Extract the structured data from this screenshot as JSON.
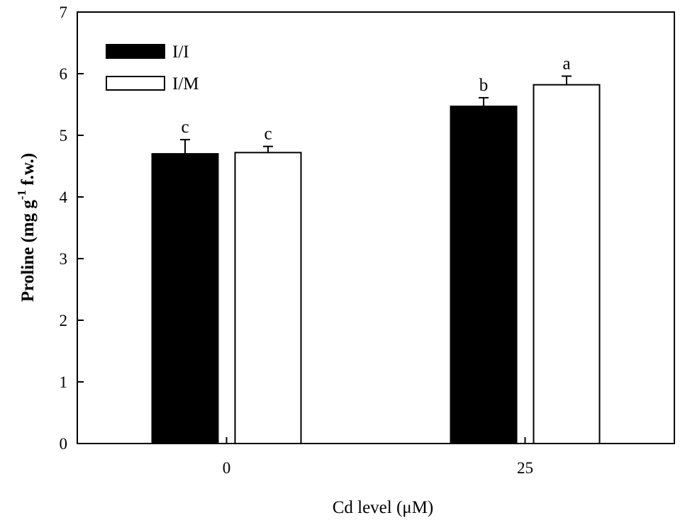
{
  "chart_data": {
    "type": "bar",
    "categories": [
      "0",
      "25"
    ],
    "xlabel": "Cd level (μM)",
    "ylabel": {
      "main": "Proline (mg g",
      "sup": "-1",
      "tail": " f.w.)"
    },
    "ylim": [
      0,
      7
    ],
    "yticks": [
      0,
      1,
      2,
      3,
      4,
      5,
      6,
      7
    ],
    "grid": false,
    "legend_position": "top-left",
    "series": [
      {
        "name": "I/I",
        "color": "#000000",
        "fill": "black",
        "values": [
          4.7,
          5.47
        ],
        "errors": [
          0.23,
          0.14
        ],
        "letters": [
          "c",
          "b"
        ]
      },
      {
        "name": "I/M",
        "color": "#ffffff",
        "fill": "white",
        "values": [
          4.72,
          5.82
        ],
        "errors": [
          0.1,
          0.14
        ],
        "letters": [
          "c",
          "a"
        ]
      }
    ]
  }
}
